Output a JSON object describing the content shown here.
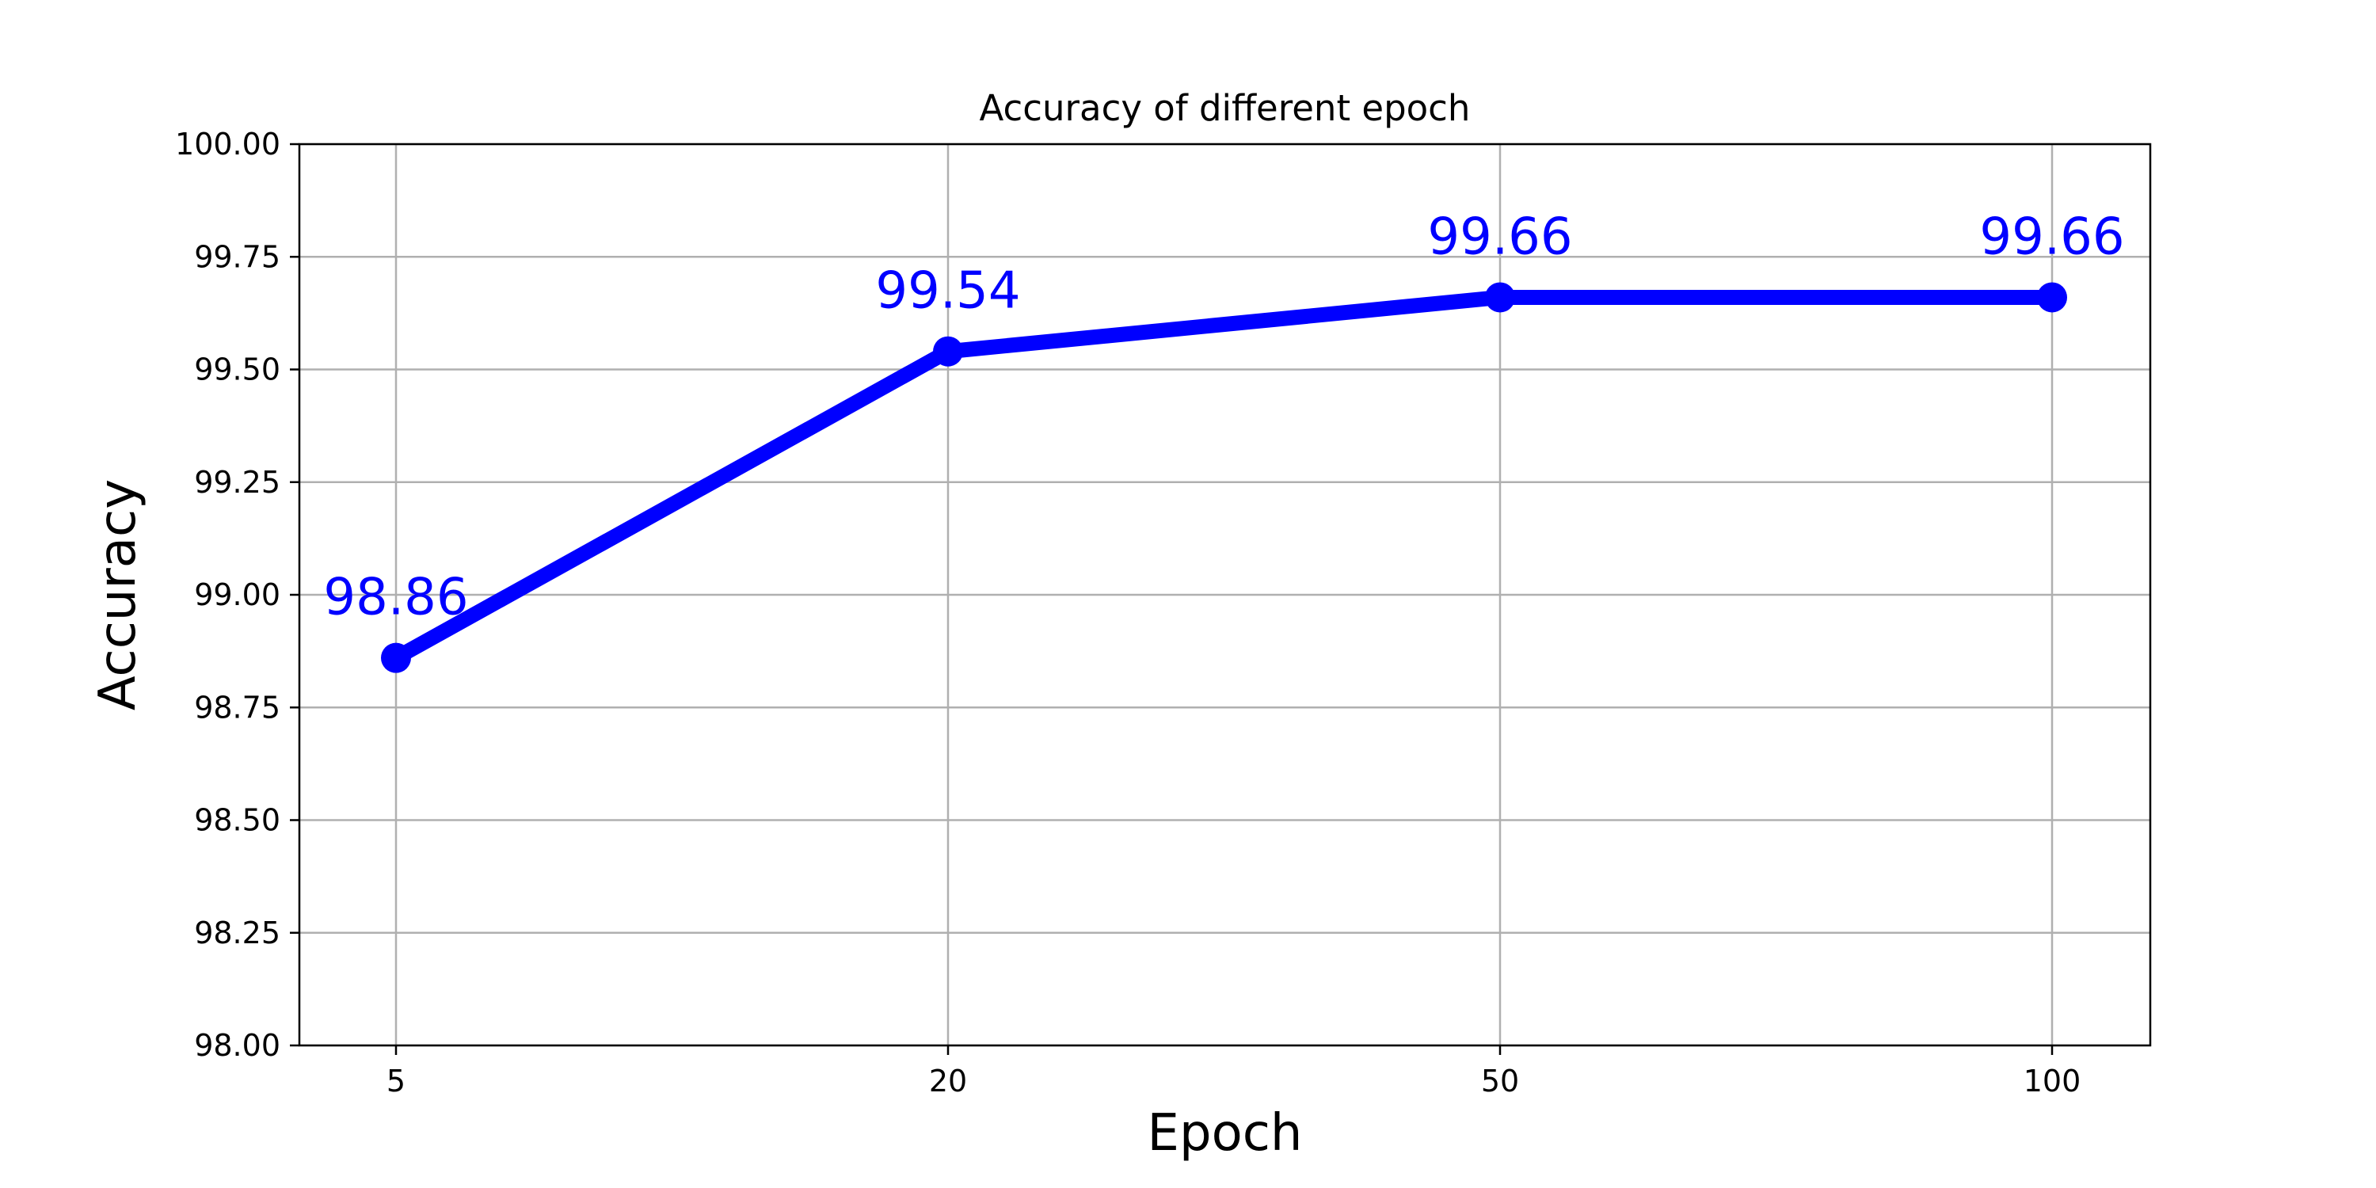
{
  "chart_data": {
    "type": "line",
    "title": "Accuracy of different epoch",
    "xlabel": "Epoch",
    "ylabel": "Accuracy",
    "categories": [
      "5",
      "20",
      "50",
      "100"
    ],
    "series": [
      {
        "values": [
          98.86,
          99.54,
          99.66,
          99.66
        ],
        "color": "#0000ff"
      }
    ],
    "data_labels": [
      "98.86",
      "99.54",
      "99.66",
      "99.66"
    ],
    "ylim": [
      98.0,
      100.0
    ],
    "yticks": [
      "98.00",
      "98.25",
      "98.50",
      "98.75",
      "99.00",
      "99.25",
      "99.50",
      "99.75",
      "100.00"
    ],
    "grid": true,
    "legend": "none"
  }
}
